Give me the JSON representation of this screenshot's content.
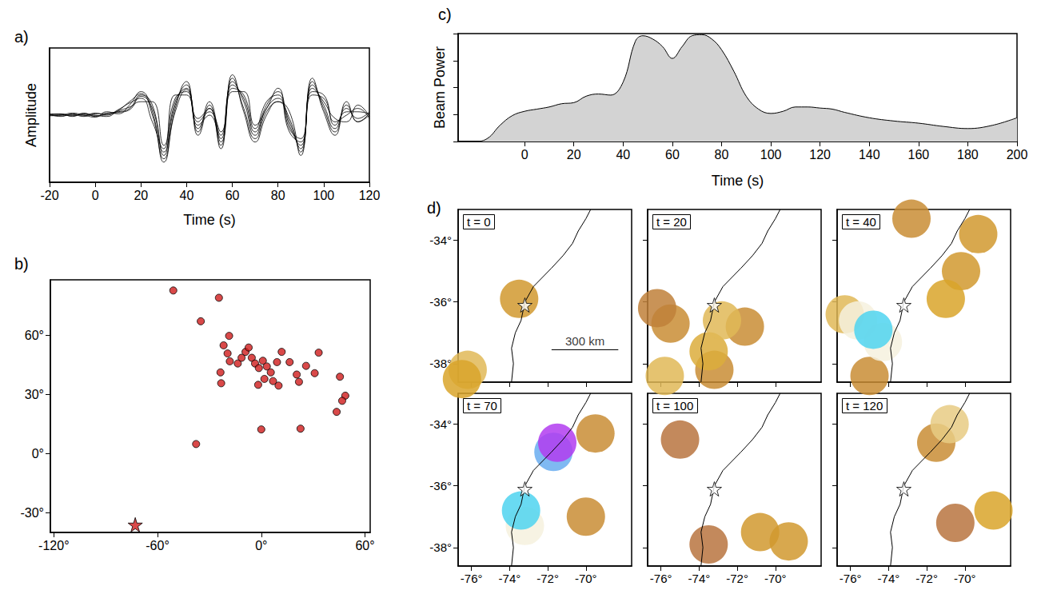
{
  "chart_data": [
    {
      "type": "line",
      "panel": "a)",
      "xlabel": "Time (s)",
      "ylabel": "Amplitude",
      "color": "#000000",
      "xlim": [
        -20,
        120
      ],
      "xticks": [
        -20,
        0,
        20,
        40,
        60,
        80,
        100,
        120
      ],
      "ylim": [
        -1,
        1
      ],
      "yticks": [],
      "tick_labels": "x",
      "x": [
        -20,
        -15,
        -10,
        -5,
        0,
        5,
        10,
        15,
        20,
        25,
        30,
        35,
        40,
        45,
        50,
        55,
        60,
        65,
        70,
        75,
        80,
        85,
        90,
        95,
        100,
        105,
        110,
        115,
        120
      ],
      "series": [
        {
          "values": [
            0,
            0.02,
            -0.02,
            0.03,
            -0.02,
            0.03,
            0.05,
            0.1,
            0.3,
            0.15,
            -0.6,
            0.2,
            0.4,
            -0.2,
            0.1,
            -0.35,
            0.5,
            0.2,
            -0.3,
            0.1,
            0.25,
            -0.1,
            -0.5,
            0.45,
            0.15,
            -0.2,
            0.1,
            -0.05,
            0.05
          ]
        },
        {
          "values": [
            0.01,
            -0.02,
            0.02,
            -0.01,
            0.03,
            0,
            0.08,
            0.18,
            0.25,
            -0.1,
            -0.5,
            0.3,
            0.3,
            -0.3,
            0.15,
            -0.45,
            0.4,
            0.3,
            -0.2,
            0.2,
            0.3,
            -0.25,
            -0.4,
            0.3,
            0.25,
            -0.1,
            0,
            0.1,
            -0.05
          ]
        },
        {
          "values": [
            -0.01,
            0,
            0.03,
            0,
            -0.03,
            0.05,
            0.02,
            0.15,
            0.35,
            0.05,
            -0.7,
            0.1,
            0.5,
            -0.1,
            0.05,
            -0.25,
            0.6,
            0.05,
            -0.4,
            0,
            0.2,
            0.05,
            -0.6,
            0.55,
            0.05,
            -0.3,
            0.2,
            -0.1,
            0
          ]
        },
        {
          "values": [
            0.02,
            0.01,
            -0.01,
            0.02,
            0,
            -0.02,
            0.06,
            0.12,
            0.2,
            0.2,
            -0.45,
            0.25,
            0.35,
            -0.25,
            0.2,
            -0.3,
            0.45,
            0.25,
            -0.25,
            0.15,
            0.35,
            -0.15,
            -0.45,
            0.35,
            0.3,
            -0.15,
            0.05,
            0.05,
            0.02
          ]
        },
        {
          "values": [
            0,
            -0.01,
            0.01,
            -0.02,
            0.02,
            0.02,
            0.04,
            0.08,
            0.28,
            0.1,
            -0.55,
            0.15,
            0.45,
            -0.15,
            0,
            -0.4,
            0.55,
            0.1,
            -0.35,
            0.05,
            0.2,
            -0.05,
            -0.55,
            0.5,
            0.1,
            -0.25,
            0.15,
            -0.1,
            0.03
          ]
        },
        {
          "values": [
            0.01,
            0.01,
            0,
            0.01,
            -0.01,
            0.01,
            0.07,
            0.2,
            0.32,
            0,
            -0.65,
            0.05,
            0.38,
            -0.05,
            0.1,
            -0.5,
            0.35,
            0.35,
            -0.15,
            0.1,
            0.4,
            -0.2,
            -0.35,
            0.4,
            0.2,
            -0.05,
            -0.1,
            0.15,
            -0.02
          ]
        }
      ]
    },
    {
      "type": "scatter",
      "panel": "b)",
      "color": "#d01c1c",
      "marker": "circle",
      "xlim": [
        -122,
        63
      ],
      "xticks": [
        {
          "value": -120,
          "label": "-120°"
        },
        {
          "value": -60,
          "label": "-60°"
        },
        {
          "value": 0,
          "label": "0°"
        },
        {
          "value": 60,
          "label": "60°"
        }
      ],
      "ylim": [
        -40,
        88
      ],
      "yticks": [
        {
          "value": -30,
          "label": "-30°"
        },
        {
          "value": 0,
          "label": "0°"
        },
        {
          "value": 30,
          "label": "30°"
        },
        {
          "value": 60,
          "label": "60°"
        }
      ],
      "stations": [
        [
          -50.9,
          82.6
        ],
        [
          -24.5,
          78.9
        ],
        [
          -35,
          67
        ],
        [
          -18.6,
          59.6
        ],
        [
          -21.8,
          54.8
        ],
        [
          -19.5,
          50.7
        ],
        [
          -18.2,
          46.7
        ],
        [
          -23.6,
          41.1
        ],
        [
          -23.2,
          35.6
        ],
        [
          -13.6,
          45.6
        ],
        [
          -11.4,
          48.5
        ],
        [
          -9.1,
          51.5
        ],
        [
          -7.3,
          53.7
        ],
        [
          -5.5,
          48.5
        ],
        [
          -3.6,
          45.6
        ],
        [
          -1.4,
          43.3
        ],
        [
          0.9,
          47
        ],
        [
          3.2,
          44.1
        ],
        [
          5.5,
          41.1
        ],
        [
          1.8,
          37.8
        ],
        [
          -1.8,
          34.8
        ],
        [
          6.8,
          36.7
        ],
        [
          9.1,
          46.3
        ],
        [
          11.8,
          51.5
        ],
        [
          16.4,
          46.3
        ],
        [
          20.5,
          40
        ],
        [
          21.8,
          36.3
        ],
        [
          10,
          34.4
        ],
        [
          0,
          12.2
        ],
        [
          -37.7,
          4.8
        ],
        [
          22.7,
          12.6
        ],
        [
          33.2,
          51.1
        ],
        [
          45.5,
          38.9
        ],
        [
          48.6,
          29.3
        ],
        [
          46.8,
          26.7
        ],
        [
          43.6,
          21.1
        ],
        [
          30.9,
          40.7
        ],
        [
          25.9,
          44.4
        ]
      ],
      "epicenter": [
        -72.9,
        -36.1
      ]
    },
    {
      "type": "line",
      "panel": "c)",
      "xlabel": "Time (s)",
      "ylabel": "Beam Power",
      "color": "#d3d3d3",
      "tick_labels": "x",
      "xlim": [
        -27,
        200
      ],
      "xticks": [
        0,
        20,
        40,
        60,
        80,
        100,
        120,
        140,
        160,
        180,
        200
      ],
      "ylim": [
        0,
        1
      ],
      "yticks": [
        0,
        0.25,
        0.5,
        0.75,
        1
      ],
      "x": [
        -27,
        -20,
        -15,
        -10,
        -5,
        0,
        5,
        10,
        15,
        20,
        25,
        30,
        35,
        40,
        45,
        48,
        52,
        56,
        60,
        64,
        68,
        72,
        76,
        80,
        85,
        90,
        95,
        100,
        105,
        110,
        115,
        120,
        125,
        130,
        140,
        150,
        160,
        170,
        180,
        190,
        200
      ],
      "values": [
        0,
        0,
        0.03,
        0.15,
        0.24,
        0.28,
        0.3,
        0.32,
        0.35,
        0.36,
        0.42,
        0.44,
        0.43,
        0.55,
        0.93,
        0.98,
        0.95,
        0.88,
        0.77,
        0.88,
        0.98,
        0.99,
        0.95,
        0.85,
        0.65,
        0.42,
        0.3,
        0.26,
        0.28,
        0.32,
        0.32,
        0.31,
        0.3,
        0.27,
        0.22,
        0.19,
        0.17,
        0.14,
        0.12,
        0.15,
        0.22
      ]
    },
    {
      "type": "scatter",
      "panel": "d)",
      "value_range": [
        0,
        1
      ],
      "xlim": [
        -76.7,
        -67.6
      ],
      "xticks": [
        {
          "value": -76,
          "label": "-76°"
        },
        {
          "value": -74,
          "label": "-74°"
        },
        {
          "value": -72,
          "label": "-72°"
        },
        {
          "value": -70,
          "label": "-70°"
        }
      ],
      "ylim": [
        -38.6,
        -33
      ],
      "yticks": [
        {
          "value": -34,
          "label": "-34°"
        },
        {
          "value": -36,
          "label": "-36°"
        },
        {
          "value": -38,
          "label": "-38°"
        }
      ],
      "coastline": [
        [
          -73.9,
          -38.6
        ],
        [
          -73.8,
          -38.0
        ],
        [
          -73.9,
          -37.5
        ],
        [
          -73.7,
          -37.0
        ],
        [
          -73.4,
          -36.6
        ],
        [
          -73.2,
          -36.0
        ],
        [
          -72.75,
          -35.5
        ],
        [
          -71.8,
          -34.9
        ],
        [
          -71.2,
          -34.5
        ],
        [
          -70.7,
          -34.1
        ],
        [
          -70.4,
          -33.7
        ],
        [
          -70.0,
          -33.3
        ],
        [
          -69.75,
          -33.0
        ]
      ],
      "epicenter": [
        -73.2,
        -36.1
      ],
      "maps": [
        {
          "label": "t = 0",
          "tick_labels": "y",
          "scale_bar": {
            "label": "300 km",
            "lon": [
              -71.8,
              -68.3
            ],
            "lat": -37.55
          },
          "sources": [
            [
              -73.5,
              -35.9,
              0.35
            ],
            [
              -76.2,
              -38.2,
              0.45
            ],
            [
              -76.5,
              -38.5,
              0.4
            ]
          ]
        },
        {
          "label": "t = 20",
          "tick_labels": false,
          "sources": [
            [
              -75.5,
              -36.7,
              0.3
            ],
            [
              -71.6,
              -36.8,
              0.3
            ],
            [
              -76.2,
              -36.2,
              0.25
            ],
            [
              -73.2,
              -38.2,
              0.3
            ],
            [
              -75.8,
              -38.4,
              0.45
            ],
            [
              -73.5,
              -37.6,
              0.42
            ],
            [
              -72.8,
              -36.6,
              0.45
            ]
          ]
        },
        {
          "label": "t = 40",
          "tick_labels": false,
          "sources": [
            [
              -72.8,
              -33.3,
              0.3
            ],
            [
              -69.3,
              -33.8,
              0.35
            ],
            [
              -70.2,
              -35.0,
              0.35
            ],
            [
              -71.0,
              -35.9,
              0.4
            ],
            [
              -75.0,
              -38.4,
              0.3
            ],
            [
              -76.3,
              -36.4,
              0.45
            ],
            [
              -74.3,
              -37.3,
              0.6
            ],
            [
              -75.6,
              -36.6,
              0.6
            ],
            [
              -74.8,
              -36.9,
              0.8
            ]
          ]
        },
        {
          "label": "t = 70",
          "tick_labels": true,
          "sources": [
            [
              -69.5,
              -34.3,
              0.3
            ],
            [
              -70.0,
              -37.0,
              0.3
            ],
            [
              -73.2,
              -37.3,
              0.6
            ],
            [
              -73.4,
              -36.8,
              0.8
            ],
            [
              -71.7,
              -34.9,
              0.85
            ],
            [
              -71.5,
              -34.6,
              1.0
            ]
          ]
        },
        {
          "label": "t = 100",
          "tick_labels": "x",
          "sources": [
            [
              -75.0,
              -34.5,
              0.2
            ],
            [
              -73.5,
              -37.9,
              0.2
            ],
            [
              -70.8,
              -37.5,
              0.35
            ],
            [
              -69.3,
              -37.8,
              0.35
            ]
          ]
        },
        {
          "label": "t = 120",
          "tick_labels": "x",
          "sources": [
            [
              -70.5,
              -37.2,
              0.2
            ],
            [
              -71.5,
              -34.6,
              0.3
            ],
            [
              -68.5,
              -36.8,
              0.4
            ],
            [
              -70.8,
              -34.0,
              0.5
            ]
          ]
        }
      ]
    }
  ]
}
